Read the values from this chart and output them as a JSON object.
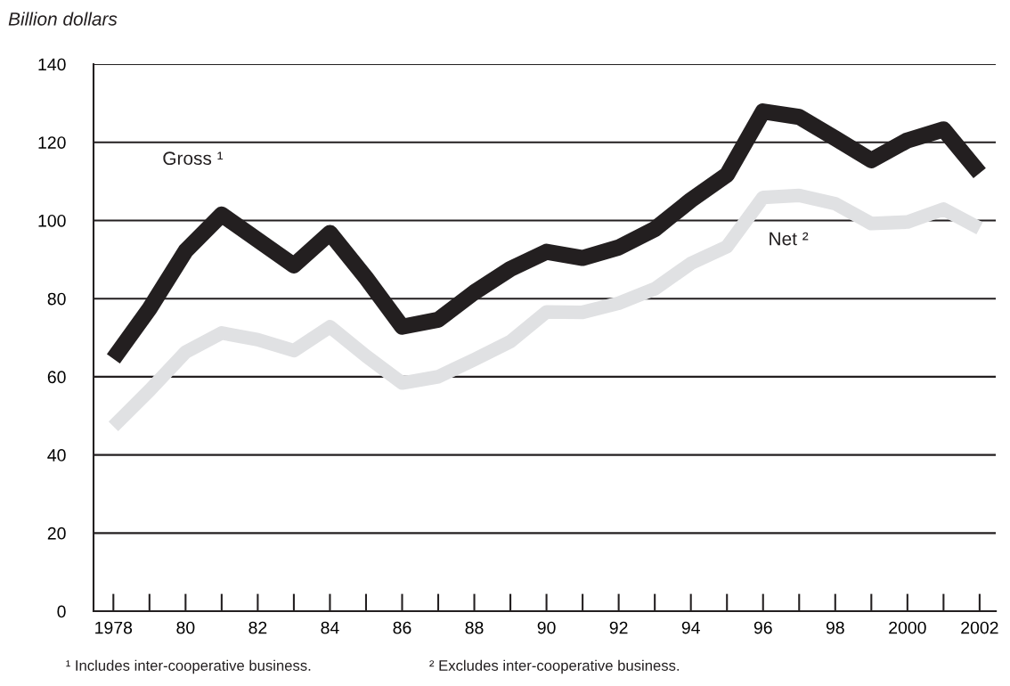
{
  "chart_data": {
    "type": "line",
    "ylabel": "Billion dollars",
    "x": [
      1978,
      1979,
      1980,
      1981,
      1982,
      1983,
      1984,
      1985,
      1986,
      1987,
      1988,
      1989,
      1990,
      1991,
      1992,
      1993,
      1994,
      1995,
      1996,
      1997,
      1998,
      1999,
      2000,
      2001,
      2002
    ],
    "series": [
      {
        "name": "Gross ¹",
        "color": "#231f20",
        "values": [
          64.6,
          77.4,
          92.2,
          101.5,
          95,
          88.5,
          96.8,
          85.3,
          72.8,
          74.6,
          81.6,
          87.6,
          92,
          90.4,
          93.1,
          97.8,
          105.2,
          111.7,
          127.9,
          126.5,
          121,
          115.4,
          120.5,
          123.3,
          112.1
        ]
      },
      {
        "name": "Net ²",
        "color": "#e0e1e3",
        "values": [
          47.3,
          56.5,
          66.3,
          71.2,
          69.5,
          66.7,
          72.8,
          65.3,
          58.4,
          60,
          64.4,
          69,
          76.6,
          76.5,
          78.8,
          82.5,
          89,
          93.3,
          105.9,
          106.4,
          104.3,
          99.2,
          99.6,
          102.9,
          98
        ]
      }
    ],
    "xlim": [
      1977.45,
      2002.45
    ],
    "xticks": [
      {
        "value": 1978,
        "label": "1978"
      },
      {
        "value": 1980,
        "label": "80"
      },
      {
        "value": 1982,
        "label": "82"
      },
      {
        "value": 1984,
        "label": "84"
      },
      {
        "value": 1986,
        "label": "86"
      },
      {
        "value": 1988,
        "label": "88"
      },
      {
        "value": 1990,
        "label": "90"
      },
      {
        "value": 1992,
        "label": "92"
      },
      {
        "value": 1994,
        "label": "94"
      },
      {
        "value": 1996,
        "label": "96"
      },
      {
        "value": 1998,
        "label": "98"
      },
      {
        "value": 2000,
        "label": "2000"
      },
      {
        "value": 2002,
        "label": "2002"
      }
    ],
    "ylim": [
      0,
      140
    ],
    "yticks": [
      0,
      20,
      40,
      60,
      80,
      100,
      120,
      140
    ],
    "grid": "y",
    "legend": false,
    "annotations": [
      "¹ Includes inter-cooperative business.",
      "² Excludes inter-cooperative business."
    ]
  }
}
